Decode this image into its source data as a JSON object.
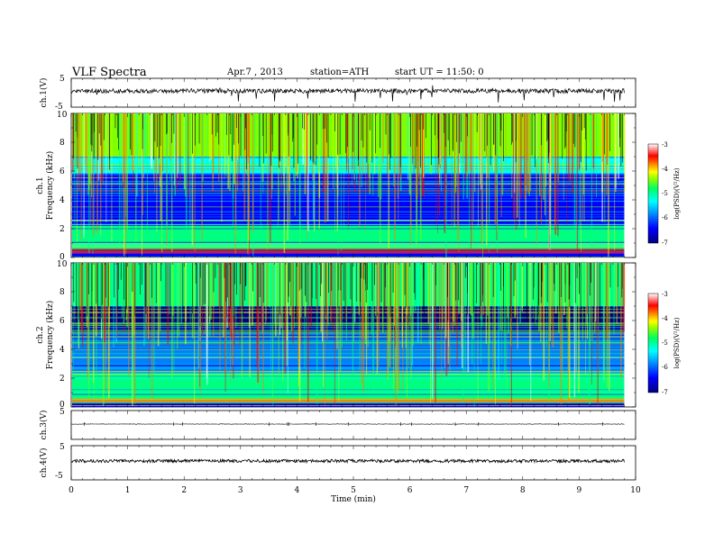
{
  "header": {
    "title": "VLF  Spectra",
    "date": "Apr.7  , 2013",
    "station": "station=ATH",
    "start": "start  UT  =    11:50: 0"
  },
  "chart_data": [
    {
      "type": "line",
      "panel": "ch1-waveform",
      "ylabel": "ch.1(V)",
      "ylim": [
        -5,
        5
      ],
      "yticks": [
        "5",
        "-5"
      ],
      "description_values": {
        "x_range_min": [
          0,
          9.8
        ],
        "baseline_V": 0,
        "typical_amplitude_V": 1
      }
    },
    {
      "type": "heatmap",
      "panel": "ch1-spectrogram",
      "ylabel": "ch.1\nFrequency (kHz)",
      "ylim": [
        0,
        10
      ],
      "yticks": [
        "0",
        "2",
        "4",
        "6",
        "8",
        "10"
      ],
      "x_range_min": [
        0,
        9.8
      ],
      "colorbar": {
        "label": "log(PSD)(V²/Hz)",
        "range": [
          -7,
          -3
        ],
        "ticks": [
          "-3",
          "-4",
          "-5",
          "-6",
          "-7"
        ]
      },
      "bands_kHz": [
        {
          "range": [
            0,
            0.3
          ],
          "logPSD": -6.5
        },
        {
          "range": [
            0.3,
            0.6
          ],
          "logPSD": -3.3
        },
        {
          "range": [
            0.6,
            2.2
          ],
          "logPSD": -5.2
        },
        {
          "range": [
            2.2,
            5.8
          ],
          "logPSD": -6.6
        },
        {
          "range": [
            5.8,
            7.0
          ],
          "logPSD": -5.8
        },
        {
          "range": [
            7.0,
            10.0
          ],
          "logPSD": -4.8
        }
      ]
    },
    {
      "type": "heatmap",
      "panel": "ch2-spectrogram",
      "ylabel": "ch.2\nFrequency (kHz)",
      "ylim": [
        0,
        10
      ],
      "yticks": [
        "0",
        "2",
        "4",
        "6",
        "8",
        "10"
      ],
      "x_range_min": [
        0,
        9.8
      ],
      "colorbar": {
        "label": "log(PSD)(V²/Hz)",
        "range": [
          -7,
          -3
        ],
        "ticks": [
          "-3",
          "-4",
          "-5",
          "-6",
          "-7"
        ]
      },
      "bands_kHz": [
        {
          "range": [
            0,
            0.3
          ],
          "logPSD": -6.4
        },
        {
          "range": [
            0.3,
            0.6
          ],
          "logPSD": -4.0
        },
        {
          "range": [
            0.6,
            2.4
          ],
          "logPSD": -5.3
        },
        {
          "range": [
            2.4,
            5.2
          ],
          "logPSD": -6.3
        },
        {
          "range": [
            5.2,
            7.0
          ],
          "logPSD": -6.8
        },
        {
          "range": [
            7.0,
            10.0
          ],
          "logPSD": -5.2
        }
      ]
    },
    {
      "type": "line",
      "panel": "ch3-waveform",
      "ylabel": "ch.3(V)",
      "ylim": [
        -5,
        5
      ],
      "yticks": [
        "5"
      ],
      "description_values": {
        "x_range_min": [
          0,
          9.8
        ],
        "baseline_V": 0
      }
    },
    {
      "type": "line",
      "panel": "ch4-waveform",
      "ylabel": "ch.4(V)",
      "ylim": [
        -5,
        5
      ],
      "yticks": [
        "5",
        "-5"
      ],
      "description_values": {
        "x_range_min": [
          0,
          9.8
        ],
        "baseline_V": 0
      }
    }
  ],
  "xaxis": {
    "label": "Time  (min)",
    "range": [
      0,
      10
    ],
    "ticks": [
      "0",
      "1",
      "2",
      "3",
      "4",
      "5",
      "6",
      "7",
      "8",
      "9",
      "10"
    ]
  },
  "colormap": [
    "#000080",
    "#0000ff",
    "#0080ff",
    "#00ffff",
    "#00ff80",
    "#80ff00",
    "#ffff00",
    "#ff8000",
    "#ff0000",
    "#ffffff"
  ]
}
